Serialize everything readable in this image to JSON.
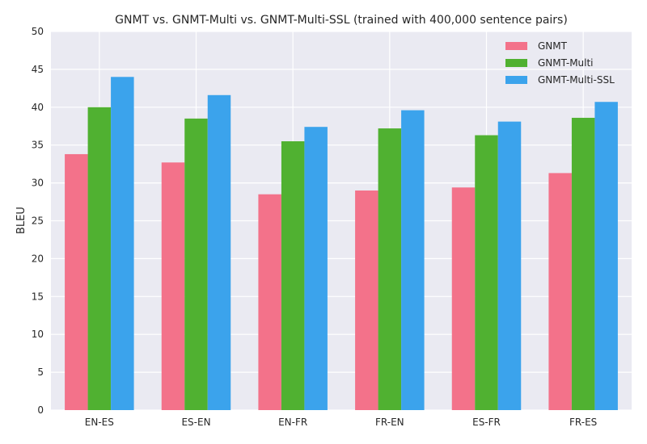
{
  "chart_data": {
    "type": "bar",
    "title": "GNMT vs. GNMT-Multi vs. GNMT-Multi-SSL (trained with 400,000 sentence pairs)",
    "xlabel": "",
    "ylabel": "BLEU",
    "ylim": [
      0,
      50
    ],
    "yticks": [
      0,
      5,
      10,
      15,
      20,
      25,
      30,
      35,
      40,
      45,
      50
    ],
    "categories": [
      "EN-ES",
      "ES-EN",
      "EN-FR",
      "FR-EN",
      "ES-FR",
      "FR-ES"
    ],
    "series": [
      {
        "name": "GNMT",
        "color": "#f3728a",
        "values": [
          33.8,
          32.7,
          28.5,
          29.0,
          29.4,
          31.3
        ]
      },
      {
        "name": "GNMT-Multi",
        "color": "#50b131",
        "values": [
          40.0,
          38.5,
          35.5,
          37.2,
          36.3,
          38.6
        ]
      },
      {
        "name": "GNMT-Multi-SSL",
        "color": "#3ba3ec",
        "values": [
          44.0,
          41.6,
          37.4,
          39.6,
          38.1,
          40.7
        ]
      }
    ],
    "grid": true,
    "legend_position": "top-right",
    "background": "#eaeaf2"
  }
}
